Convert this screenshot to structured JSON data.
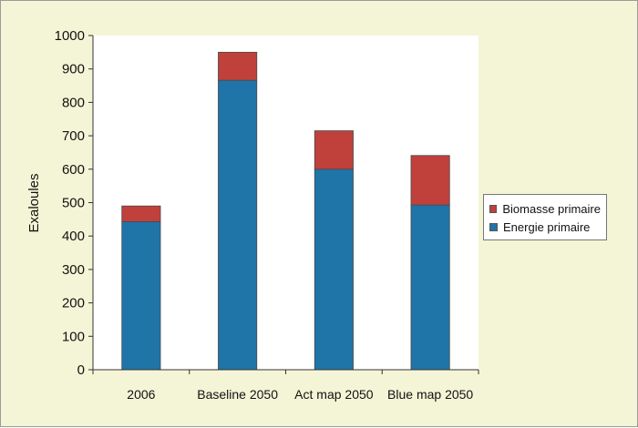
{
  "chart_data": {
    "type": "bar",
    "stacked": true,
    "categories": [
      "2006",
      "Baseline 2050",
      "Act map 2050",
      "Blue map 2050"
    ],
    "series": [
      {
        "name": "Energie primaire",
        "color": "#1f74a8",
        "values": [
          443,
          866,
          600,
          493
        ]
      },
      {
        "name": "Biomasse primaire",
        "color": "#c0403c",
        "values": [
          47,
          84,
          115,
          148
        ]
      }
    ],
    "ylabel": "Exaloules",
    "xlabel": "",
    "ylim": [
      0,
      1000
    ],
    "yticks": [
      0,
      100,
      200,
      300,
      400,
      500,
      600,
      700,
      800,
      900,
      1000
    ],
    "grid": false,
    "legend_position": "right"
  }
}
